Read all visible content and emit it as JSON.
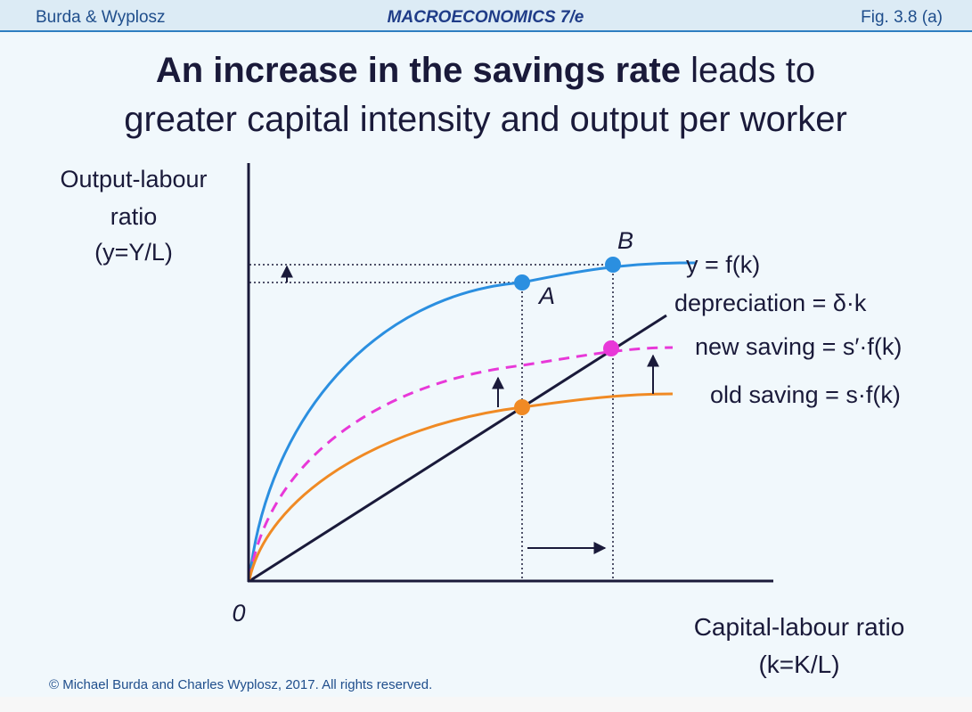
{
  "header": {
    "left": "Burda & Wyplosz",
    "center": "MACROECONOMICS  7/e",
    "right": "Fig. 3.8 (a)"
  },
  "title": {
    "bold": "An increase in the savings rate",
    "rest": " leads to",
    "line2": "greater capital intensity and output per worker"
  },
  "y_axis": {
    "lines": [
      "Output-labour",
      "ratio",
      "(y=Y/L)"
    ]
  },
  "x_axis": {
    "lines": [
      "Capital-labour ratio",
      "(k=K/L)"
    ]
  },
  "origin": "0",
  "points": {
    "a": "A",
    "b": "B"
  },
  "curves": {
    "output": "y = f(k)",
    "depreciation": "depreciation = δ·k",
    "new_saving": "new saving = s′·f(k)",
    "old_saving": "old saving = s·f(k)"
  },
  "copyright": "© Michael Burda and Charles Wyplosz, 2017. All rights reserved."
}
